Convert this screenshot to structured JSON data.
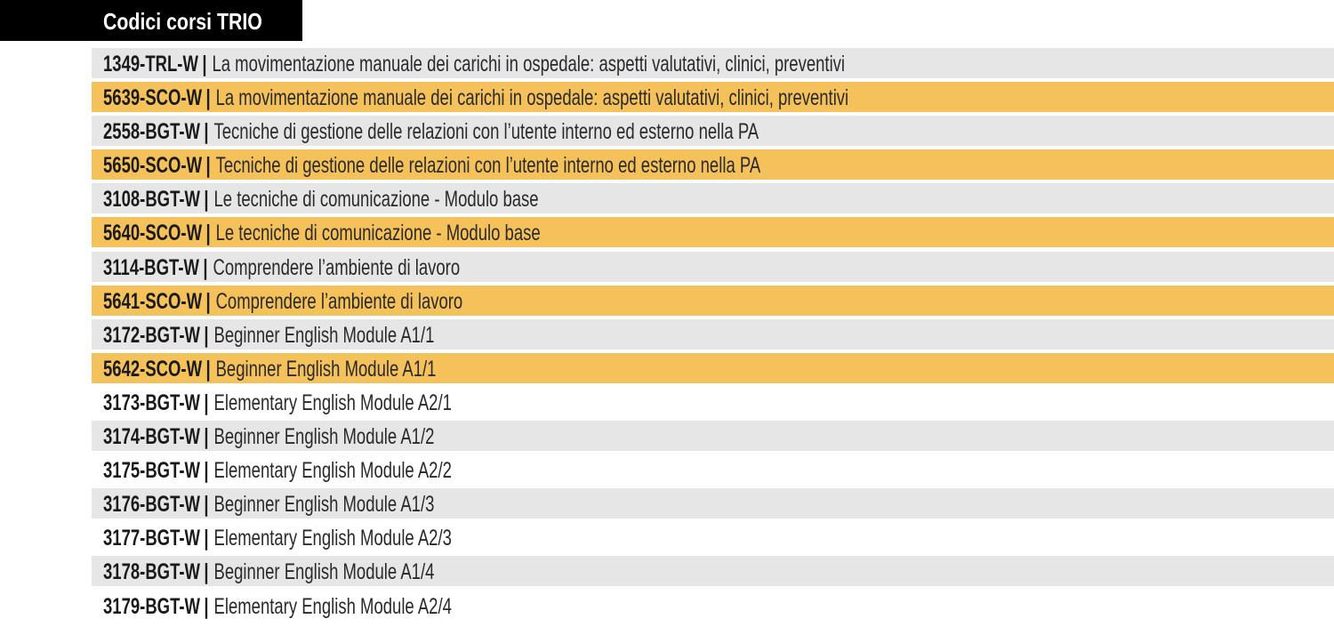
{
  "title": "Codici corsi TRIO",
  "separator": "|",
  "colors": {
    "title_bg": "#000000",
    "title_text": "#ffffff",
    "row_grey": "#e6e6e6",
    "row_white": "#ffffff",
    "row_highlight": "#f5c15a"
  },
  "courses": [
    {
      "code": "1349-TRL-W",
      "description": "La movimentazione manuale dei carichi in ospedale: aspetti valutativi, clinici, preventivi",
      "style": "grey"
    },
    {
      "code": "5639-SCO-W",
      "description": "La movimentazione manuale dei carichi in ospedale: aspetti valutativi, clinici, preventivi",
      "style": "orange"
    },
    {
      "code": "2558-BGT-W",
      "description": "Tecniche di gestione delle relazioni con l’utente interno ed esterno nella PA",
      "style": "grey"
    },
    {
      "code": "5650-SCO-W",
      "description": "Tecniche di gestione delle relazioni con l’utente interno ed esterno nella PA",
      "style": "orange"
    },
    {
      "code": "3108-BGT-W",
      "description": "Le tecniche di comunicazione - Modulo base",
      "style": "grey"
    },
    {
      "code": "5640-SCO-W",
      "description": "Le tecniche di comunicazione - Modulo base",
      "style": "orange"
    },
    {
      "code": "3114-BGT-W",
      "description": "Comprendere l’ambiente di lavoro",
      "style": "grey"
    },
    {
      "code": "5641-SCO-W",
      "description": "Comprendere l’ambiente di lavoro",
      "style": "orange"
    },
    {
      "code": "3172-BGT-W",
      "description": "Beginner English Module A1/1",
      "style": "grey"
    },
    {
      "code": "5642-SCO-W",
      "description": "Beginner English Module A1/1",
      "style": "orange"
    },
    {
      "code": "3173-BGT-W",
      "description": "Elementary English Module A2/1",
      "style": "white"
    },
    {
      "code": "3174-BGT-W",
      "description": "Beginner English Module A1/2",
      "style": "grey"
    },
    {
      "code": "3175-BGT-W",
      "description": "Elementary English Module A2/2",
      "style": "white"
    },
    {
      "code": "3176-BGT-W",
      "description": "Beginner English Module A1/3",
      "style": "grey"
    },
    {
      "code": "3177-BGT-W",
      "description": "Elementary English Module A2/3",
      "style": "white"
    },
    {
      "code": "3178-BGT-W",
      "description": "Beginner English Module A1/4",
      "style": "grey"
    },
    {
      "code": "3179-BGT-W",
      "description": "Elementary English Module A2/4",
      "style": "white"
    }
  ]
}
